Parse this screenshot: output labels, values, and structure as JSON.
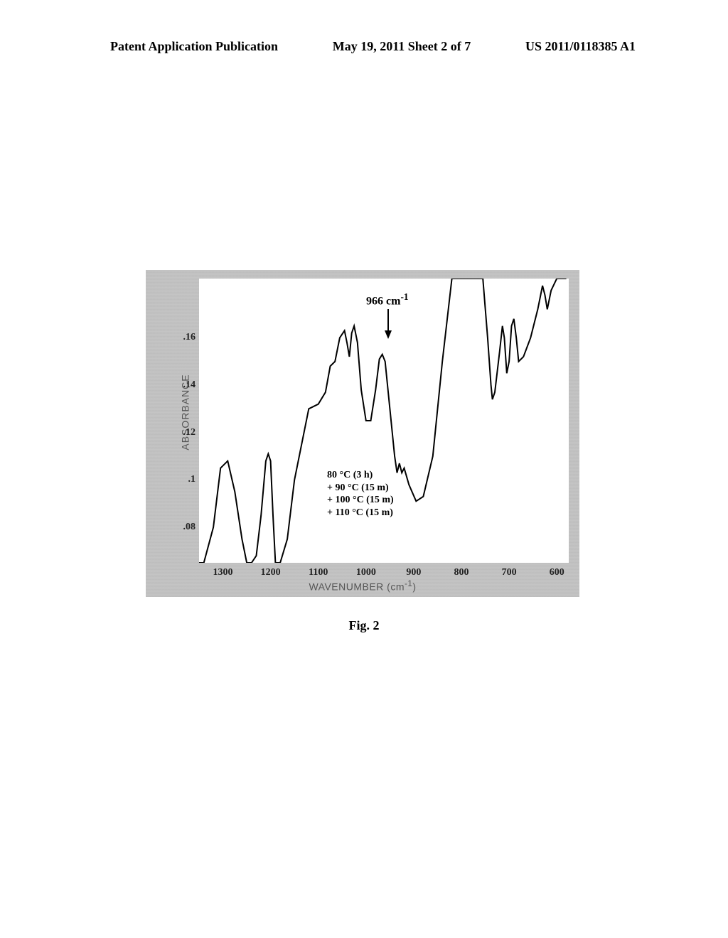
{
  "header": {
    "left": "Patent Application Publication",
    "center": "May 19, 2011  Sheet 2 of 7",
    "right": "US 2011/0118385 A1"
  },
  "figure": {
    "caption": "Fig. 2",
    "y_label": "ABSORBANCE",
    "x_label": "WAVENUMBER (cm",
    "x_label_sup": "-1",
    "x_label_close": ")",
    "peak_annotation": "966 cm",
    "peak_annotation_sup": "-1",
    "conditions": [
      "80 °C (3 h)",
      "+ 90 °C (15 m)",
      "+ 100 °C (15 m)",
      "+ 110 °C (15 m)"
    ],
    "y_ticks": [
      ".16",
      ".14",
      ".12",
      ".1",
      ".08"
    ],
    "y_tick_values": [
      0.16,
      0.14,
      0.12,
      0.1,
      0.08
    ],
    "x_ticks": [
      "1300",
      "1200",
      "1100",
      "1000",
      "900",
      "800",
      "700",
      "600"
    ],
    "x_tick_values": [
      1300,
      1200,
      1100,
      1000,
      900,
      800,
      700,
      600
    ],
    "xlim": [
      1350,
      575
    ],
    "ylim": [
      0.065,
      0.185
    ],
    "background_color": "#c4c4c4",
    "plot_bg": "#ffffff",
    "line_color": "#000000",
    "line_width": 2,
    "spectrum_points": [
      [
        1350,
        0.065
      ],
      [
        1340,
        0.065
      ],
      [
        1320,
        0.08
      ],
      [
        1305,
        0.105
      ],
      [
        1290,
        0.108
      ],
      [
        1275,
        0.095
      ],
      [
        1260,
        0.075
      ],
      [
        1250,
        0.065
      ],
      [
        1240,
        0.065
      ],
      [
        1230,
        0.068
      ],
      [
        1220,
        0.085
      ],
      [
        1210,
        0.108
      ],
      [
        1205,
        0.111
      ],
      [
        1200,
        0.108
      ],
      [
        1195,
        0.085
      ],
      [
        1190,
        0.065
      ],
      [
        1180,
        0.065
      ],
      [
        1165,
        0.075
      ],
      [
        1150,
        0.1
      ],
      [
        1120,
        0.13
      ],
      [
        1100,
        0.132
      ],
      [
        1085,
        0.137
      ],
      [
        1075,
        0.148
      ],
      [
        1065,
        0.15
      ],
      [
        1055,
        0.16
      ],
      [
        1045,
        0.163
      ],
      [
        1040,
        0.158
      ],
      [
        1035,
        0.152
      ],
      [
        1030,
        0.162
      ],
      [
        1025,
        0.165
      ],
      [
        1018,
        0.158
      ],
      [
        1010,
        0.138
      ],
      [
        1000,
        0.125
      ],
      [
        990,
        0.125
      ],
      [
        980,
        0.138
      ],
      [
        972,
        0.151
      ],
      [
        966,
        0.153
      ],
      [
        960,
        0.15
      ],
      [
        950,
        0.13
      ],
      [
        940,
        0.11
      ],
      [
        935,
        0.103
      ],
      [
        930,
        0.107
      ],
      [
        925,
        0.103
      ],
      [
        920,
        0.105
      ],
      [
        910,
        0.098
      ],
      [
        895,
        0.091
      ],
      [
        880,
        0.093
      ],
      [
        860,
        0.11
      ],
      [
        840,
        0.15
      ],
      [
        820,
        0.185
      ],
      [
        800,
        0.205
      ],
      [
        770,
        0.205
      ],
      [
        755,
        0.185
      ],
      [
        745,
        0.16
      ],
      [
        738,
        0.14
      ],
      [
        735,
        0.134
      ],
      [
        730,
        0.137
      ],
      [
        720,
        0.154
      ],
      [
        714,
        0.165
      ],
      [
        710,
        0.16
      ],
      [
        705,
        0.145
      ],
      [
        700,
        0.15
      ],
      [
        695,
        0.165
      ],
      [
        690,
        0.168
      ],
      [
        685,
        0.16
      ],
      [
        680,
        0.15
      ],
      [
        670,
        0.152
      ],
      [
        655,
        0.16
      ],
      [
        640,
        0.172
      ],
      [
        630,
        0.182
      ],
      [
        625,
        0.178
      ],
      [
        620,
        0.172
      ],
      [
        612,
        0.18
      ],
      [
        600,
        0.185
      ],
      [
        590,
        0.185
      ],
      [
        580,
        0.185
      ]
    ]
  }
}
